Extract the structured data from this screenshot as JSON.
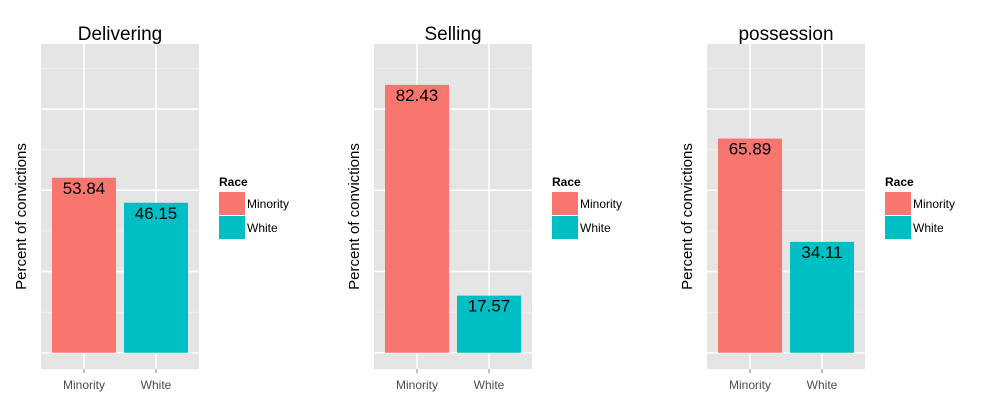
{
  "legend": {
    "title": "Race",
    "items": [
      {
        "label": "Minority",
        "color": "#f8766d"
      },
      {
        "label": "White",
        "color": "#00bfc4"
      }
    ]
  },
  "chart_data": [
    {
      "type": "bar",
      "title": "Delivering",
      "ylabel": "Percent of convictions",
      "categories": [
        "Minority",
        "White"
      ],
      "values": [
        53.84,
        46.15
      ],
      "data_labels": [
        "53.84",
        "46.15"
      ],
      "ylim": [
        -5,
        95
      ],
      "grid": true,
      "legend_position": "right"
    },
    {
      "type": "bar",
      "title": "Selling",
      "ylabel": "Percent of convictions",
      "categories": [
        "Minority",
        "White"
      ],
      "values": [
        82.43,
        17.57
      ],
      "data_labels": [
        "82.43",
        "17.57"
      ],
      "ylim": [
        -5,
        95
      ],
      "grid": true,
      "legend_position": "right"
    },
    {
      "type": "bar",
      "title": "possession",
      "ylabel": "Percent of convictions",
      "categories": [
        "Minority",
        "White"
      ],
      "values": [
        65.89,
        34.11
      ],
      "data_labels": [
        "65.89",
        "34.11"
      ],
      "ylim": [
        -5,
        95
      ],
      "grid": true,
      "legend_position": "right"
    }
  ]
}
